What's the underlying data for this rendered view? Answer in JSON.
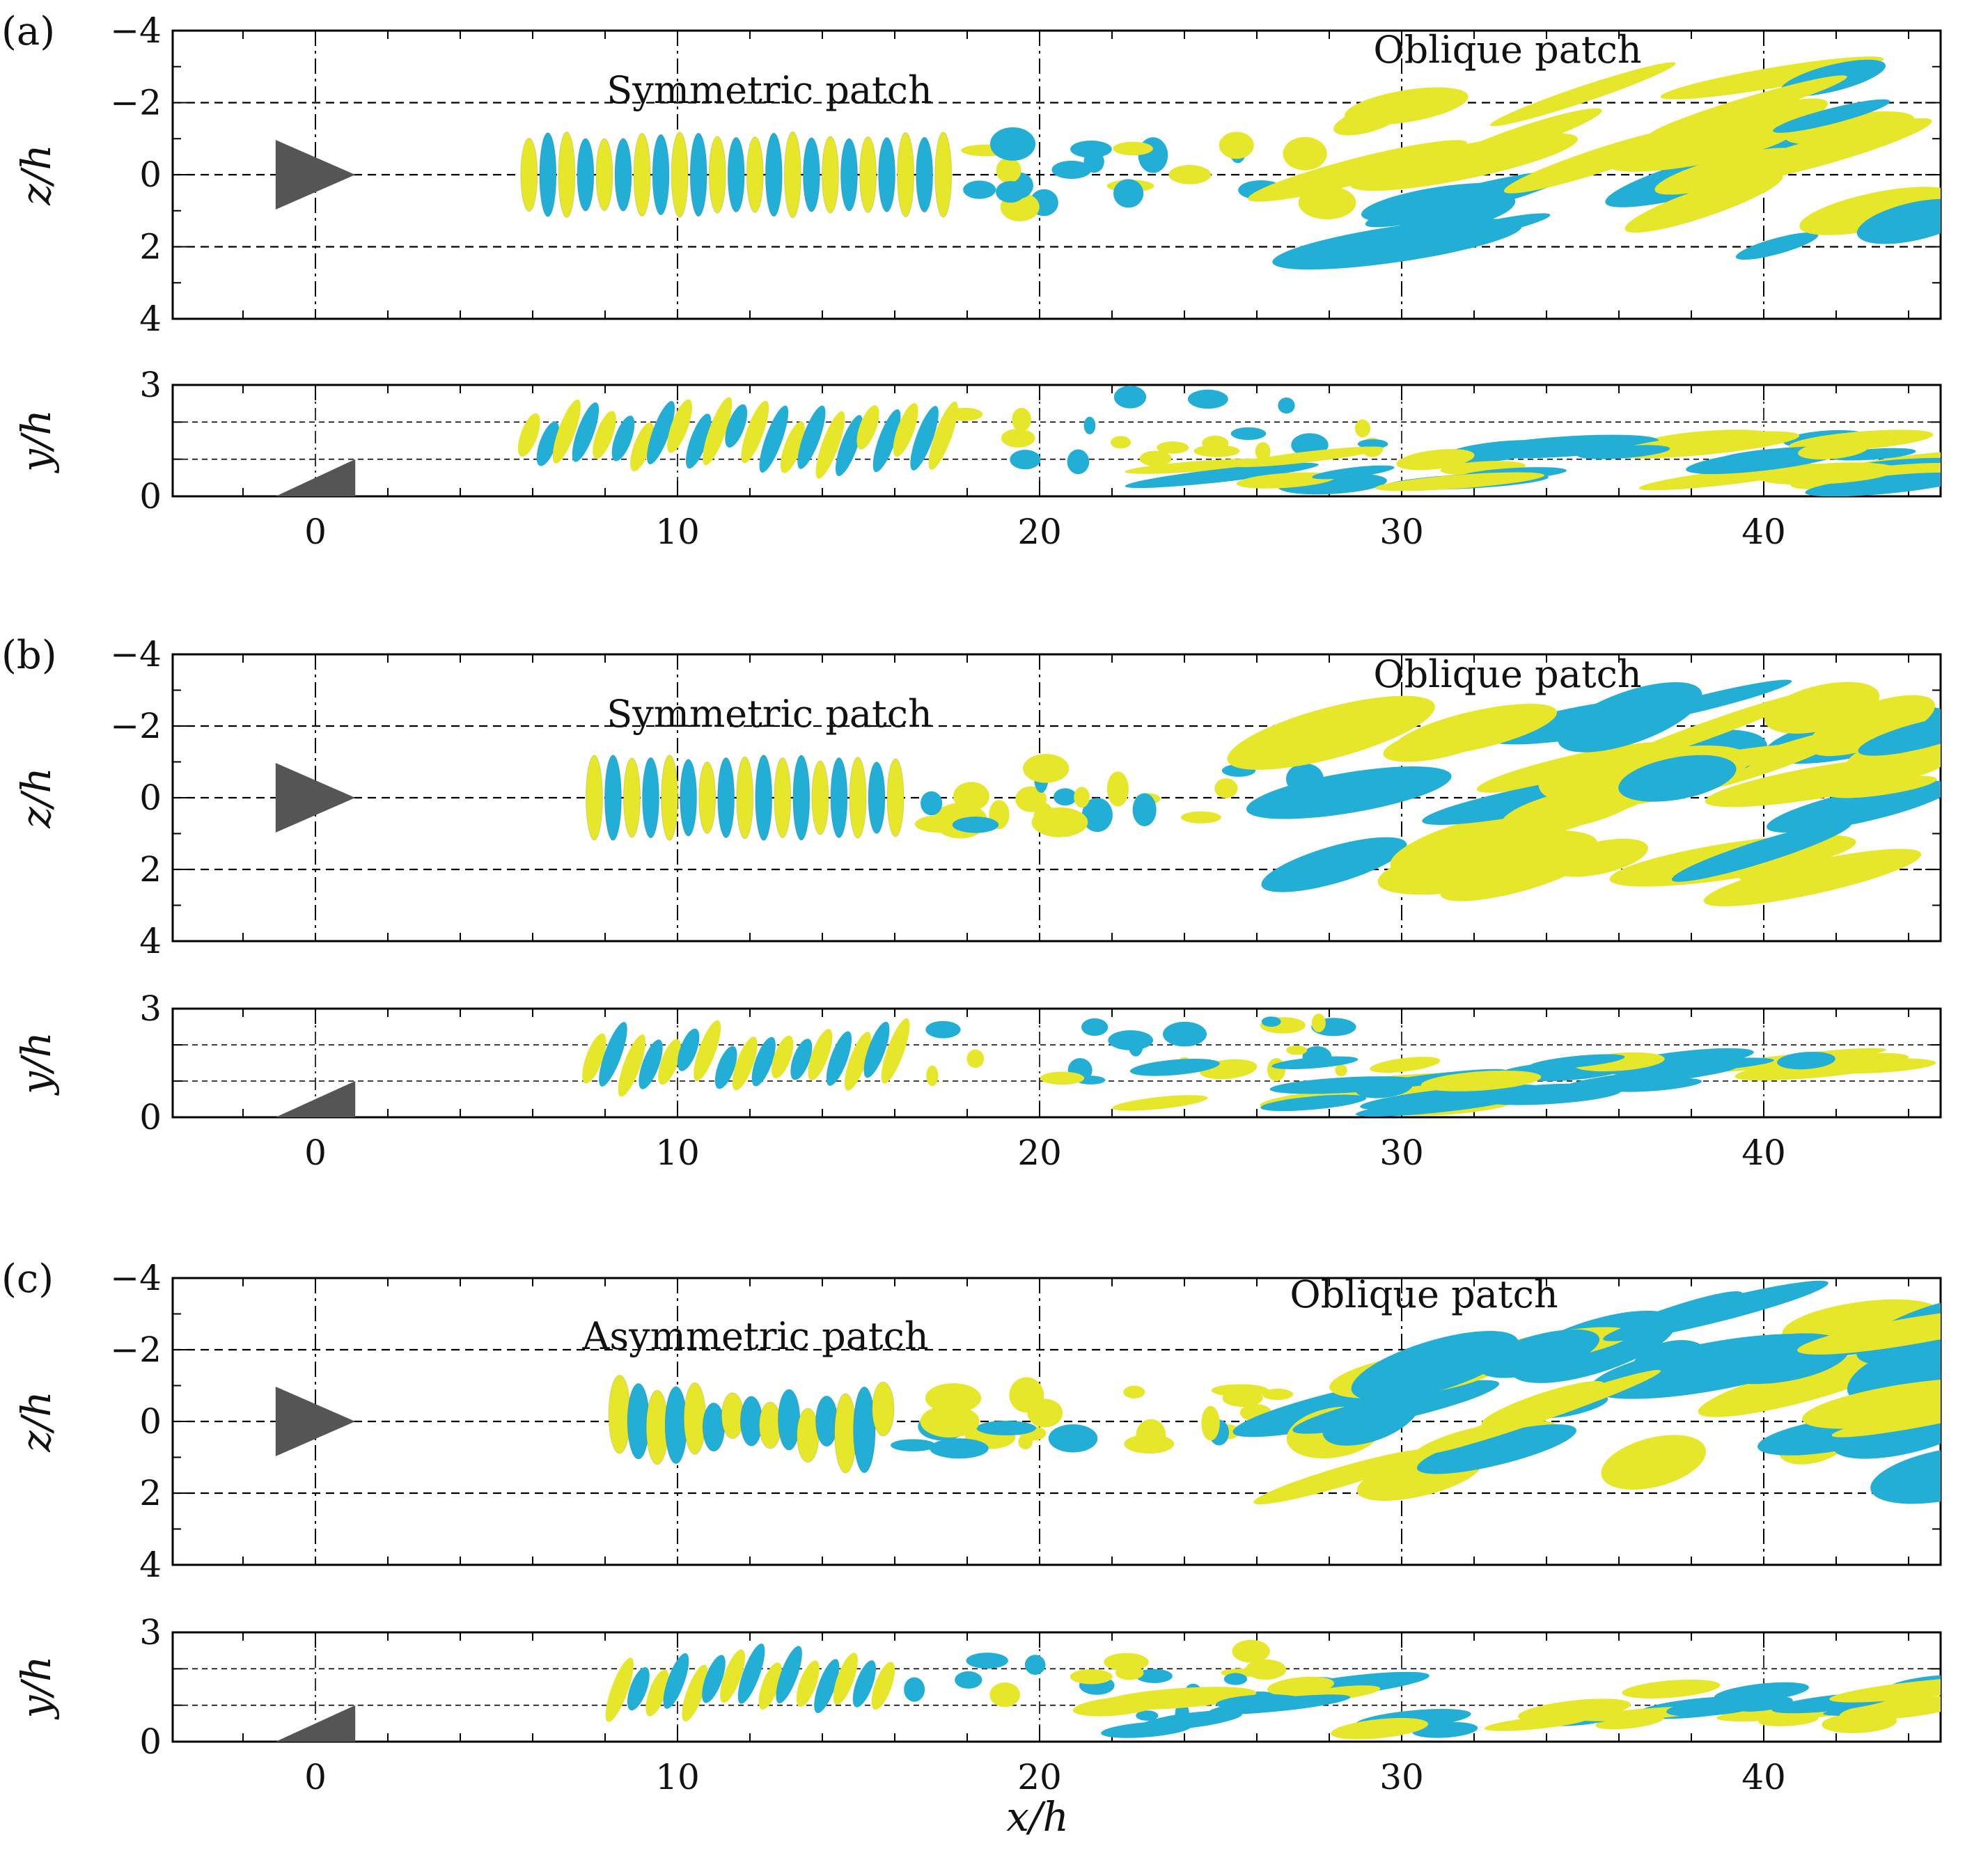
{
  "colors": {
    "positive": "#e6e62a",
    "negative": "#23aed6",
    "body": "#555555",
    "frame": "#000000"
  },
  "x_axis": {
    "label": "x/h",
    "ticks": [
      "0",
      "10",
      "20",
      "30",
      "40"
    ]
  },
  "z_axis": {
    "label": "z/h",
    "ticks": [
      "−4",
      "−2",
      "0",
      "2",
      "4"
    ]
  },
  "y_axis": {
    "label": "y/h",
    "ticks": [
      "0",
      "3"
    ]
  },
  "panels": [
    {
      "tag": "(a)",
      "labels": [
        {
          "text": "Symmetric patch"
        },
        {
          "text": "Oblique patch"
        }
      ]
    },
    {
      "tag": "(b)",
      "labels": [
        {
          "text": "Symmetric patch"
        },
        {
          "text": "Oblique patch"
        }
      ]
    },
    {
      "tag": "(c)",
      "labels": [
        {
          "text": "Asymmetric patch"
        },
        {
          "text": "Oblique patch"
        }
      ]
    }
  ]
}
